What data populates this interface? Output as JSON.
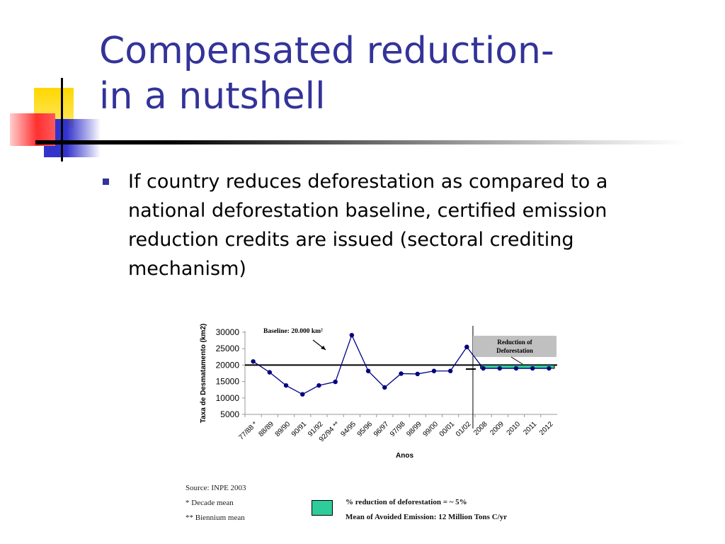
{
  "slide": {
    "title_line1": "Compensated reduction-",
    "title_line2": "in a nutshell",
    "bullets": [
      "If country reduces deforestation as compared to a national deforestation baseline, certified emission reduction credits are issued (sectoral crediting mechanism)"
    ],
    "colors": {
      "title": "#333399",
      "bullet": "#333399",
      "deco_yellow": "#ffd700",
      "deco_red": "#ff3030",
      "deco_blue": "#3333cc"
    }
  },
  "chart_data": {
    "type": "line",
    "xlabel": "Anos",
    "ylabel": "Taxa de Desmatamento (km2)",
    "categories": [
      "77/88 *",
      "88/89",
      "89/90",
      "90/91",
      "91/92",
      "92/94 **",
      "94/95",
      "95/96",
      "96/97",
      "97/98",
      "98/99",
      "99/00",
      "00/01",
      "01/02",
      "2008",
      "2009",
      "2010",
      "2011",
      "2012"
    ],
    "series": [
      {
        "values": [
          21100,
          17800,
          13800,
          11100,
          13800,
          14900,
          29100,
          18200,
          13200,
          17400,
          17300,
          18200,
          18200,
          25500,
          null,
          null,
          null,
          null,
          null
        ],
        "color": "#000080"
      },
      {
        "values": [
          null,
          null,
          null,
          null,
          null,
          null,
          null,
          null,
          null,
          null,
          null,
          null,
          null,
          25500,
          19000,
          19000,
          19000,
          19000,
          19000
        ],
        "color": "#000080"
      }
    ],
    "yticks": [
      5000,
      10000,
      15000,
      20000,
      25000,
      30000
    ],
    "ylim": [
      5000,
      30000
    ],
    "baseline": {
      "value": 20000,
      "label": "Baseline: 20.000 km²"
    },
    "reduction_band": {
      "from": 19000,
      "to": 20000,
      "color": "#2ecc9a"
    },
    "reduction_box": {
      "line1": "Reduction of",
      "line2": "Deforestation",
      "color": "#c0c0c0"
    },
    "divider_after": "01/02"
  },
  "notes": {
    "source": "Source: INPE 2003",
    "decade": "* Decade mean",
    "biennium": "** Biennium mean",
    "legend_line1": "% reduction of deforestation = ~ 5%",
    "legend_line2": "Mean of Avoided Emission: 12 Million Tons C/yr"
  }
}
